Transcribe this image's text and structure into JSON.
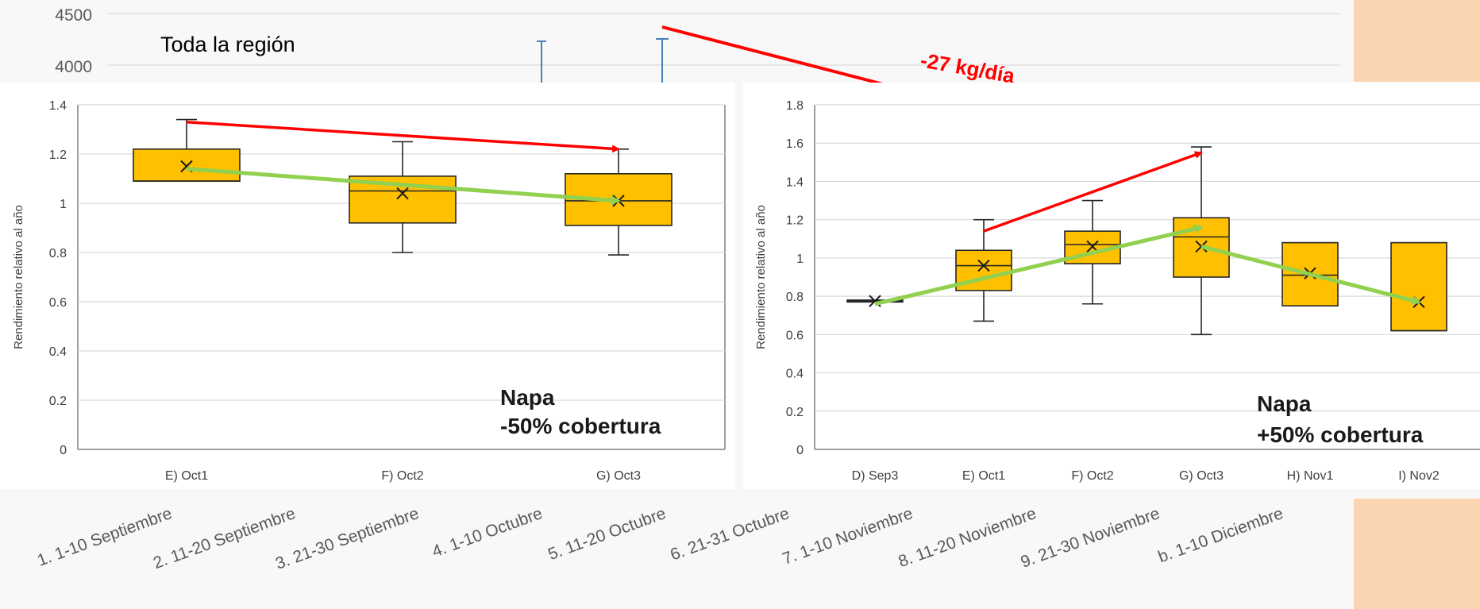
{
  "colors": {
    "box_fill": "#ffc000",
    "box_stroke": "#262626",
    "trend_red": "#ff0000",
    "trend_green": "#92d050",
    "peach": "#fbd5b2",
    "grid": "#d9d9d9",
    "bg_axis_text": "#595959",
    "bg_whisker": "#4a7ebb"
  },
  "background_chart": {
    "y_ticks": [
      "4500",
      "4000"
    ],
    "inset_label": "Toda la región",
    "annotation": "-27 kg/día",
    "x_categories": [
      "1. 1-10 Septiembre",
      "2. 11-20 Septiembre",
      "3. 21-30 Septiembre",
      "4. 1-10 Octubre",
      "5. 11-20 Octubre",
      "6. 21-31 Octubre",
      "7. 1-10 Noviembre",
      "8. 11-20 Noviembre",
      "9. 21-30 Noviembre",
      "b. 1-10 Diciembre"
    ]
  },
  "chart_data": [
    {
      "type": "box",
      "ylabel": "Rendimiento relativo al año",
      "ylim": [
        0,
        1.4
      ],
      "y_ticks": [
        "0",
        "0.2",
        "0.4",
        "0.6",
        "0.8",
        "1",
        "1.2",
        "1.4"
      ],
      "categories": [
        "E) Oct1",
        "F) Oct2",
        "G) Oct3"
      ],
      "boxes": [
        {
          "min": 1.09,
          "q1": 1.09,
          "median": 1.09,
          "q3": 1.22,
          "max": 1.34,
          "mean": 1.15
        },
        {
          "min": 0.8,
          "q1": 0.92,
          "median": 1.05,
          "q3": 1.11,
          "max": 1.25,
          "mean": 1.04
        },
        {
          "min": 0.79,
          "q1": 0.91,
          "median": 1.01,
          "q3": 1.12,
          "max": 1.22,
          "mean": 1.01
        }
      ],
      "trend_red": {
        "from": [
          0,
          1.33
        ],
        "to": [
          2,
          1.22
        ]
      },
      "trend_green": {
        "from": [
          0,
          1.14
        ],
        "to": [
          2,
          1.01
        ]
      },
      "annotation": [
        "Napa",
        "-50% cobertura"
      ]
    },
    {
      "type": "box",
      "ylabel": "Rendimiento relativo al año",
      "ylim": [
        0,
        1.8
      ],
      "y_ticks": [
        "0",
        "0.2",
        "0.4",
        "0.6",
        "0.8",
        "1",
        "1.2",
        "1.4",
        "1.6",
        "1.8"
      ],
      "categories": [
        "D) Sep3",
        "E) Oct1",
        "F) Oct2",
        "G) Oct3",
        "H) Nov1",
        "I) Nov2"
      ],
      "boxes": [
        {
          "min": 0.77,
          "q1": 0.77,
          "median": 0.775,
          "q3": 0.78,
          "max": 0.78,
          "mean": 0.775
        },
        {
          "min": 0.67,
          "q1": 0.83,
          "median": 0.96,
          "q3": 1.04,
          "max": 1.2,
          "mean": 0.96
        },
        {
          "min": 0.76,
          "q1": 0.97,
          "median": 1.07,
          "q3": 1.14,
          "max": 1.3,
          "mean": 1.06
        },
        {
          "min": 0.6,
          "q1": 0.9,
          "median": 1.11,
          "q3": 1.21,
          "max": 1.58,
          "mean": 1.06
        },
        {
          "min": 0.75,
          "q1": 0.75,
          "median": 0.91,
          "q3": 1.08,
          "max": 1.08,
          "mean": 0.92
        },
        {
          "min": 0.62,
          "q1": 0.62,
          "median": 0.62,
          "q3": 1.08,
          "max": 1.08,
          "mean": 0.77
        }
      ],
      "trend_red": {
        "from": [
          1,
          1.14
        ],
        "to": [
          3,
          1.55
        ]
      },
      "trend_green": [
        {
          "from": [
            0,
            0.76
          ],
          "to": [
            3,
            1.16
          ]
        },
        {
          "from": [
            3,
            1.06
          ],
          "to": [
            5,
            0.77
          ]
        }
      ],
      "annotation": [
        "Napa",
        "+50% cobertura"
      ]
    }
  ]
}
